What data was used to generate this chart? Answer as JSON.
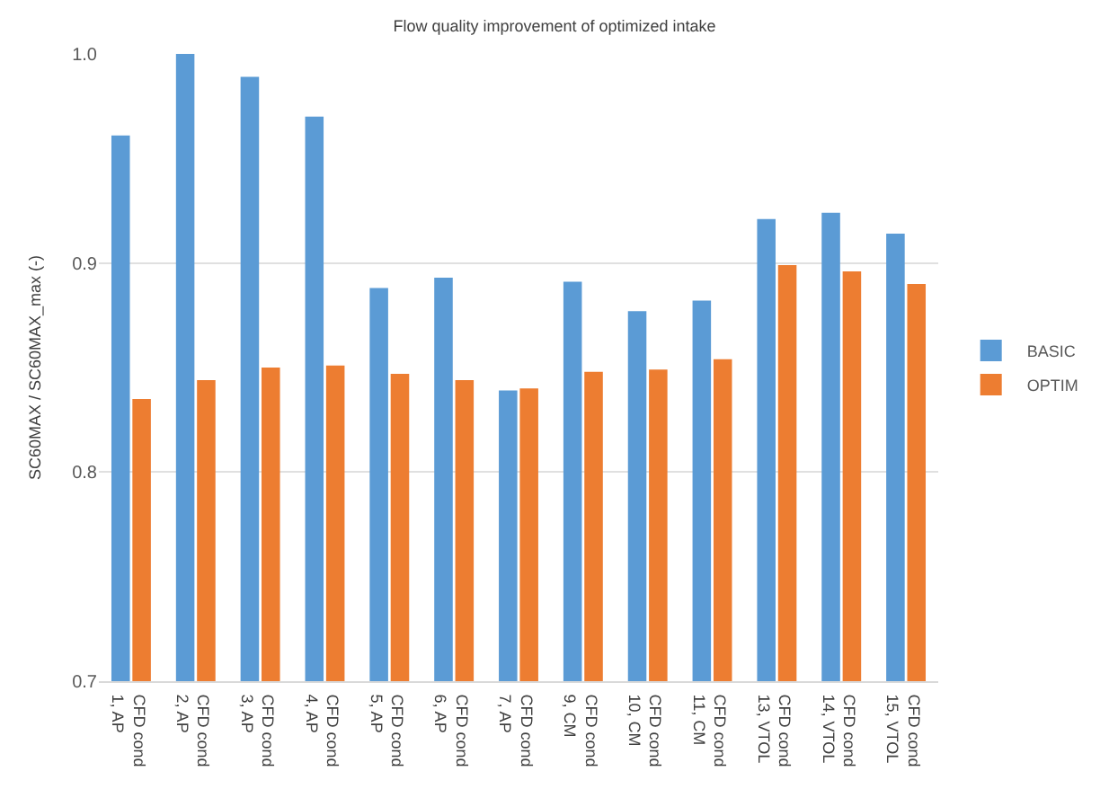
{
  "chart_data": {
    "type": "bar",
    "title": "Flow quality improvement of optimized intake",
    "ylabel": "SC60MAX / SC60MAX_max (-)",
    "categories": [
      "CFD cond 1, AP",
      "CFD cond 2, AP",
      "CFD cond 3, AP",
      "CFD cond 4, AP",
      "CFD cond 5, AP",
      "CFD cond 6, AP",
      "CFD cond 7, AP",
      "CFD cond 9, CM",
      "CFD cond 10, CM",
      "CFD cond 11, CM",
      "CFD cond 13, VTOL",
      "CFD cond 14, VTOL",
      "CFD cond 15, VTOL"
    ],
    "series": [
      {
        "name": "BASIC",
        "color": "#5b9bd5",
        "values": [
          0.961,
          1.0,
          0.989,
          0.97,
          0.888,
          0.893,
          0.839,
          0.891,
          0.877,
          0.882,
          0.921,
          0.924,
          0.914
        ]
      },
      {
        "name": "OPTIM",
        "color": "#ed7d31",
        "values": [
          0.835,
          0.844,
          0.85,
          0.851,
          0.847,
          0.844,
          0.84,
          0.848,
          0.849,
          0.854,
          0.899,
          0.896,
          0.89
        ]
      }
    ],
    "ylim": [
      0.7,
      1.0
    ],
    "yticks": [
      {
        "value": 0.7,
        "label": "0.7"
      },
      {
        "value": 0.8,
        "label": "0.8"
      },
      {
        "value": 0.9,
        "label": "0.9"
      },
      {
        "value": 1.0,
        "label": "1.0"
      }
    ],
    "grid": "y",
    "legend": "right"
  }
}
